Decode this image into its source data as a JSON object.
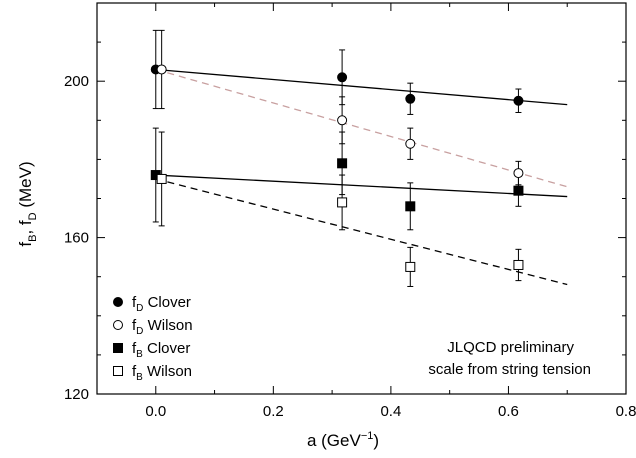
{
  "chart_data": {
    "type": "scatter",
    "title": "",
    "xlabel": {
      "base": "a (GeV",
      "sup": "−1",
      "close": ")"
    },
    "ylabel": {
      "parts": [
        "f",
        "B",
        ", f",
        "D",
        " (MeV)"
      ]
    },
    "xlim": [
      -0.1,
      0.8
    ],
    "ylim": [
      120,
      220
    ],
    "xticks": [
      0.0,
      0.2,
      0.4,
      0.6,
      0.8
    ],
    "xtick_labels": [
      "0.0",
      "0.2",
      "0.4",
      "0.6",
      "0.8"
    ],
    "yticks": [
      120,
      160,
      200
    ],
    "ytick_labels": [
      "120",
      "160",
      "200"
    ],
    "yminor": [
      130,
      140,
      150,
      170,
      180,
      190,
      210
    ],
    "xminor": [
      -0.1,
      0.1,
      0.3,
      0.5,
      0.7
    ],
    "grid": false,
    "legend_position": "bottom-left",
    "series": [
      {
        "name": "f_D Clover",
        "label_main": "f",
        "label_sub": "D",
        "label_rest": " Clover",
        "marker": "circle-filled",
        "points": [
          {
            "x": 0.0,
            "y": 203,
            "err": 10
          },
          {
            "x": 0.317,
            "y": 201,
            "err": 7
          },
          {
            "x": 0.433,
            "y": 195.5,
            "err": 4
          },
          {
            "x": 0.617,
            "y": 195,
            "err": 3
          }
        ]
      },
      {
        "name": "f_D Wilson",
        "label_main": "f",
        "label_sub": "D",
        "label_rest": " Wilson",
        "marker": "circle-open",
        "points": [
          {
            "x": 0.01,
            "y": 203,
            "err": 10
          },
          {
            "x": 0.317,
            "y": 190,
            "err": 6
          },
          {
            "x": 0.433,
            "y": 184,
            "err": 4
          },
          {
            "x": 0.617,
            "y": 176.5,
            "err": 3
          }
        ]
      },
      {
        "name": "f_B Clover",
        "label_main": "f",
        "label_sub": "B",
        "label_rest": " Clover",
        "marker": "square-filled",
        "points": [
          {
            "x": 0.0,
            "y": 176,
            "err": 12
          },
          {
            "x": 0.317,
            "y": 179,
            "err": 8
          },
          {
            "x": 0.433,
            "y": 168,
            "err": 6
          },
          {
            "x": 0.617,
            "y": 172,
            "err": 4
          }
        ]
      },
      {
        "name": "f_B Wilson",
        "label_main": "f",
        "label_sub": "B",
        "label_rest": " Wilson",
        "marker": "square-open",
        "points": [
          {
            "x": 0.01,
            "y": 175,
            "err": 12
          },
          {
            "x": 0.317,
            "y": 169,
            "err": 7
          },
          {
            "x": 0.433,
            "y": 152.5,
            "err": 5
          },
          {
            "x": 0.617,
            "y": 153,
            "err": 4
          }
        ]
      }
    ],
    "fit_lines": [
      {
        "of": "f_D Clover",
        "style": "solid",
        "color": "#000000",
        "x": [
          0.0,
          0.7
        ],
        "y": [
          203,
          194
        ]
      },
      {
        "of": "f_D Wilson",
        "style": "dashed",
        "color": "#c8a0a0",
        "x": [
          0.0,
          0.7
        ],
        "y": [
          203,
          173
        ]
      },
      {
        "of": "f_B Clover",
        "style": "solid",
        "color": "#000000",
        "x": [
          0.0,
          0.7
        ],
        "y": [
          176,
          170.5
        ]
      },
      {
        "of": "f_B Wilson",
        "style": "dashed",
        "color": "#000000",
        "x": [
          0.0,
          0.7
        ],
        "y": [
          175,
          148
        ]
      }
    ],
    "annotation": [
      "JLQCD preliminary",
      "scale from string tension"
    ]
  }
}
